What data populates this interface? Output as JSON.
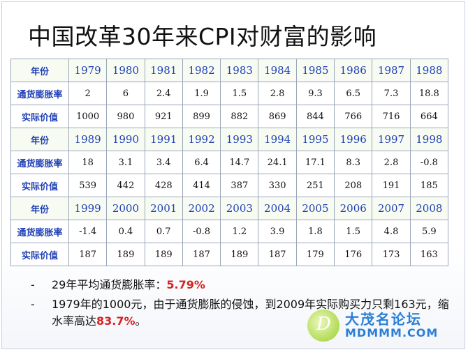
{
  "title": "中国改革30年来CPI对财富的影响",
  "row_labels": {
    "year": "年份",
    "inflation": "通货膨胀率",
    "value": "实际价值"
  },
  "blocks": [
    {
      "years": [
        "1979",
        "1980",
        "1981",
        "1982",
        "1983",
        "1984",
        "1985",
        "1986",
        "1987",
        "1988"
      ],
      "inflation": [
        "2",
        "6",
        "2.4",
        "1.9",
        "1.5",
        "2.8",
        "9.3",
        "6.5",
        "7.3",
        "18.8"
      ],
      "value": [
        "1000",
        "980",
        "921",
        "899",
        "882",
        "869",
        "844",
        "766",
        "716",
        "664"
      ]
    },
    {
      "years": [
        "1989",
        "1990",
        "1991",
        "1992",
        "1993",
        "1994",
        "1995",
        "1996",
        "1997",
        "1998"
      ],
      "inflation": [
        "18",
        "3.1",
        "3.4",
        "6.4",
        "14.7",
        "24.1",
        "17.1",
        "8.3",
        "2.8",
        "-0.8"
      ],
      "value": [
        "539",
        "442",
        "428",
        "414",
        "387",
        "330",
        "251",
        "208",
        "191",
        "185"
      ]
    },
    {
      "years": [
        "1999",
        "2000",
        "2001",
        "2002",
        "2003",
        "2004",
        "2005",
        "2006",
        "2007",
        "2008"
      ],
      "inflation": [
        "-1.4",
        "0.4",
        "0.7",
        "-0.8",
        "1.2",
        "3.9",
        "1.8",
        "1.5",
        "4.8",
        "5.9"
      ],
      "value": [
        "187",
        "189",
        "189",
        "187",
        "189",
        "187",
        "179",
        "176",
        "173",
        "163"
      ]
    }
  ],
  "notes": [
    {
      "dash": "-",
      "text": "29年平均通货膨胀率：",
      "highlight": "5.79%",
      "suffix": ""
    },
    {
      "dash": "-",
      "text": "1979年的1000元，由于通货膨胀的侵蚀，到2009年实际购买力只剩163元，缩水率高达",
      "highlight": "83.7%",
      "suffix": "。"
    }
  ],
  "watermark": {
    "letter": "D",
    "cn": "大茂名论坛",
    "en": "MDMMM.COM"
  },
  "colors": {
    "label_blue": "#1f3fb5",
    "highlight_red": "#d6231f",
    "watermark_blue": "#2b7fd6"
  }
}
